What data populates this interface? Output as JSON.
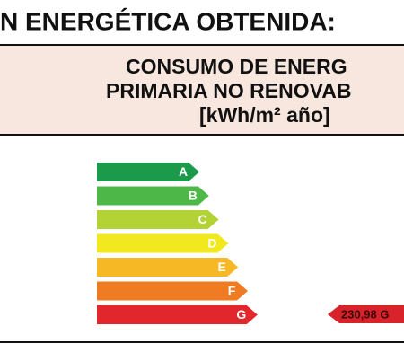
{
  "title": "N ENERGÉTICA OBTENIDA:",
  "header": {
    "lines": [
      "CONSUMO DE ENERG",
      "PRIMARIA NO RENOVAB",
      "[kWh/m² año]"
    ]
  },
  "scale": {
    "classes": [
      {
        "letter": "A",
        "color": "#1a9a4a"
      },
      {
        "letter": "B",
        "color": "#4db848"
      },
      {
        "letter": "C",
        "color": "#b3d236"
      },
      {
        "letter": "D",
        "color": "#f1e91d"
      },
      {
        "letter": "E",
        "color": "#f6b824"
      },
      {
        "letter": "F",
        "color": "#ef7b22"
      },
      {
        "letter": "G",
        "color": "#e2262b"
      }
    ]
  },
  "rating": {
    "label": "230,98 G",
    "color": "#d8232a"
  }
}
